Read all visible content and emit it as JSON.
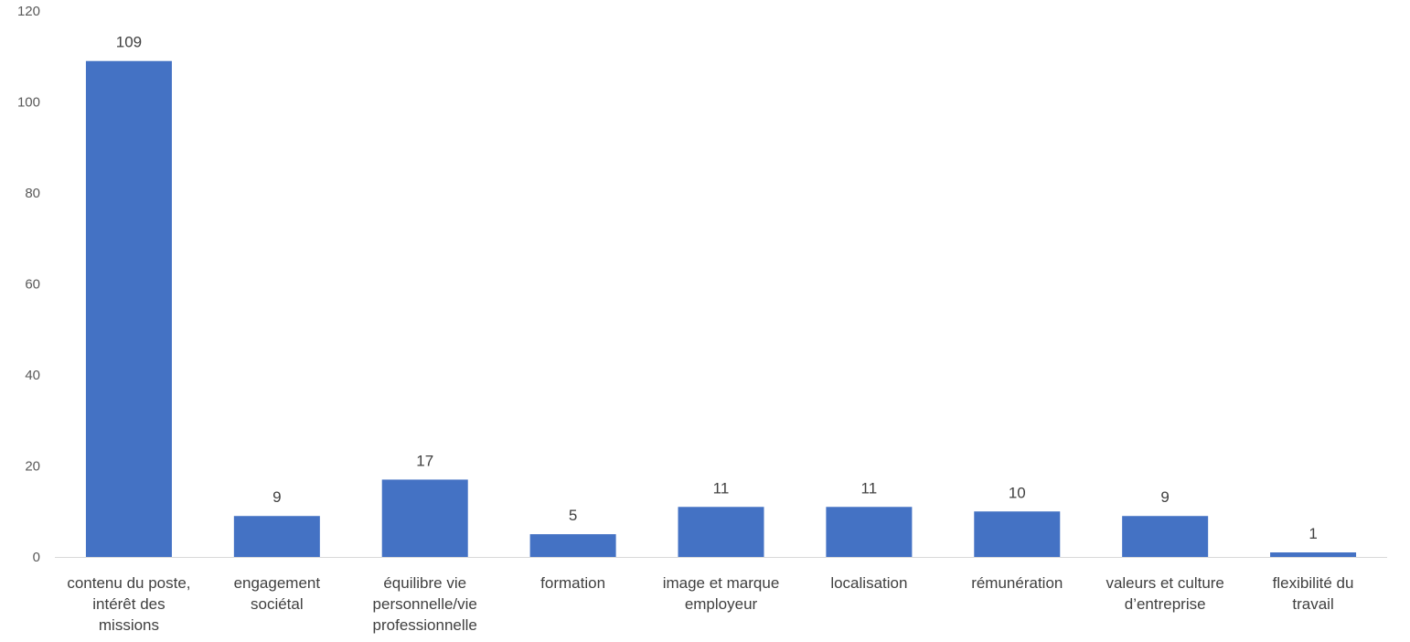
{
  "chart_data": {
    "type": "bar",
    "title": "",
    "xlabel": "",
    "ylabel": "",
    "categories": [
      "contenu du poste, intérêt des missions",
      "engagement sociétal",
      "équilibre vie personnelle/vie professionnelle",
      "formation",
      "image et marque employeur",
      "localisation",
      "rémunération",
      "valeurs et culture d’entreprise",
      "flexibilité du travail"
    ],
    "category_lines": [
      [
        "contenu du poste,",
        "intérêt des",
        "missions"
      ],
      [
        "engagement",
        "sociétal"
      ],
      [
        "équilibre vie",
        "personnelle/vie",
        "professionnelle"
      ],
      [
        "formation"
      ],
      [
        "image et marque",
        "employeur"
      ],
      [
        "localisation"
      ],
      [
        "rémunération"
      ],
      [
        "valeurs et culture",
        "d’entreprise"
      ],
      [
        "flexibilité du",
        "travail"
      ]
    ],
    "values": [
      109,
      9,
      17,
      5,
      11,
      11,
      10,
      9,
      1
    ],
    "data_labels": [
      "109",
      "9",
      "17",
      "5",
      "11",
      "11",
      "10",
      "9",
      "1"
    ],
    "ylim": [
      0,
      120
    ],
    "yticks": [
      0,
      20,
      40,
      60,
      80,
      100,
      120
    ],
    "ytick_labels": [
      "0",
      "20",
      "40",
      "60",
      "80",
      "100",
      "120"
    ],
    "grid": false,
    "legend": "none",
    "bar_color": "#4472C4",
    "axis_color": "#D9D9D9",
    "label_color": "#404040",
    "tick_color": "#595959"
  }
}
